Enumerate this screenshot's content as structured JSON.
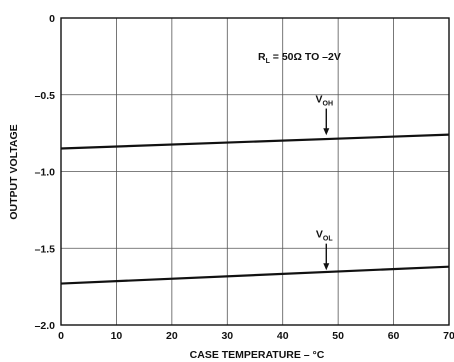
{
  "chart_data": {
    "type": "line",
    "title": "",
    "xlabel": "CASE TEMPERATURE – °C",
    "ylabel": "OUTPUT VOLTAGE",
    "xlim": [
      0,
      70
    ],
    "ylim": [
      -2.0,
      0
    ],
    "x_ticks": [
      0,
      10,
      20,
      30,
      40,
      50,
      60,
      70
    ],
    "x_tick_labels": [
      "0",
      "10",
      "20",
      "30",
      "40",
      "50",
      "60",
      "70"
    ],
    "y_ticks": [
      0,
      -0.5,
      -1.0,
      -1.5,
      -2.0
    ],
    "y_tick_labels": [
      "0",
      "–0.5",
      "–1.0",
      "–1.5",
      "–2.0"
    ],
    "grid": true,
    "series": [
      {
        "name": "VOH",
        "x": [
          0,
          70
        ],
        "values": [
          -0.85,
          -0.76
        ]
      },
      {
        "name": "VOL",
        "x": [
          0,
          70
        ],
        "values": [
          -1.73,
          -1.62
        ]
      }
    ],
    "annotations": [
      {
        "main": "V",
        "sub": "OH",
        "x": 47.5,
        "y": -0.59,
        "arrow_to": -0.77
      },
      {
        "main": "V",
        "sub": "OL",
        "x": 47.5,
        "y": -1.47,
        "arrow_to": -1.65
      }
    ],
    "condition": {
      "main": "R",
      "sub": "L",
      "rest": " = 50Ω TO –2V"
    }
  }
}
